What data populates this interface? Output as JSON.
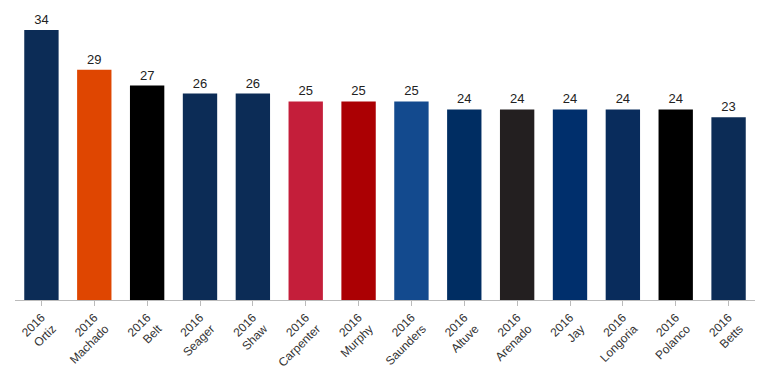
{
  "chart_data": {
    "type": "bar",
    "categories": [
      "2016\nOrtiz",
      "2016\nMachado",
      "2016\nBelt",
      "2016\nSeager",
      "2016\nShaw",
      "2016\nCarpenter",
      "2016\nMurphy",
      "2016\nSaunders",
      "2016\nAltuve",
      "2016\nArenado",
      "2016\nJay",
      "2016\nLongoria",
      "2016\nPolanco",
      "2016\nBetts"
    ],
    "values": [
      34,
      29,
      27,
      26,
      26,
      25,
      25,
      25,
      24,
      24,
      24,
      24,
      24,
      23
    ],
    "colors": [
      "#0c2c56",
      "#df4601",
      "#000000",
      "#0c2c56",
      "#0c2c56",
      "#c41e3a",
      "#ab0003",
      "#134a8e",
      "#002d62",
      "#231f20",
      "#002f6c",
      "#092c5c",
      "#000000",
      "#0c2c56"
    ],
    "ylim": [
      0,
      34
    ],
    "data_labels": true,
    "tick_labels": "x",
    "grid": false
  }
}
